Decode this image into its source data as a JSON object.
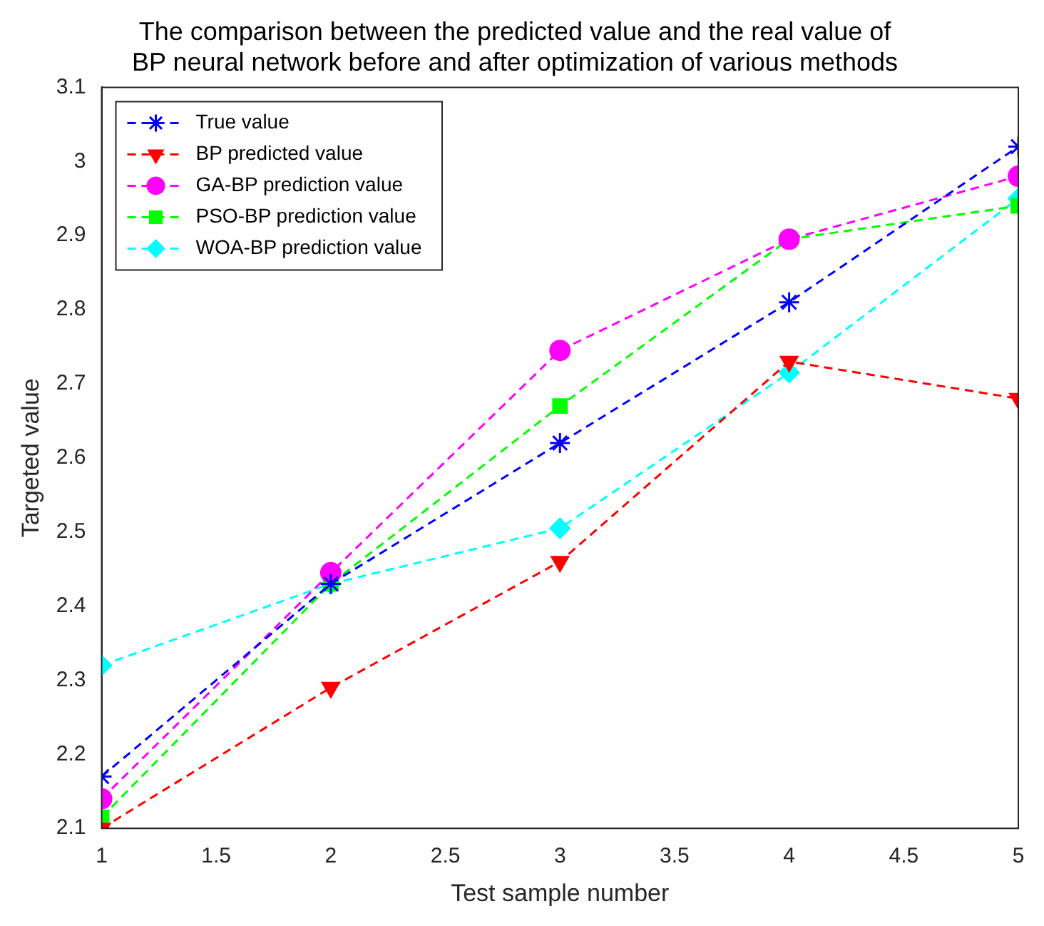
{
  "chart_data": {
    "type": "line",
    "title": "The comparison between the predicted value and the real value of BP neural network before and after optimization of various methods",
    "xlabel": "Test sample number",
    "ylabel": "Targeted value",
    "x": [
      1,
      2,
      3,
      4,
      5
    ],
    "series": [
      {
        "name": "True value",
        "color": "#0000ff",
        "marker": "cross",
        "values": [
          2.17,
          2.43,
          2.62,
          2.81,
          3.02
        ]
      },
      {
        "name": "BP predicted value",
        "color": "#ff0000",
        "marker": "triangle",
        "values": [
          2.1,
          2.29,
          2.46,
          2.73,
          2.68
        ]
      },
      {
        "name": "GA-BP prediction value",
        "color": "#ff00ff",
        "marker": "circle",
        "values": [
          2.14,
          2.445,
          2.745,
          2.895,
          2.98
        ]
      },
      {
        "name": "PSO-BP prediction value",
        "color": "#00ff00",
        "marker": "square",
        "values": [
          2.115,
          2.43,
          2.67,
          2.895,
          2.94
        ]
      },
      {
        "name": "WOA-BP prediction value",
        "color": "#00ffff",
        "marker": "diamond",
        "values": [
          2.32,
          2.43,
          2.505,
          2.715,
          2.95
        ]
      }
    ],
    "xlim": [
      1,
      5
    ],
    "xticks": [
      1,
      1.5,
      2,
      2.5,
      3,
      3.5,
      4,
      4.5,
      5
    ],
    "ylim": [
      2.1,
      3.1
    ],
    "yticks": [
      2.1,
      2.2,
      2.3,
      2.4,
      2.5,
      2.6,
      2.7,
      2.8,
      2.9,
      3,
      3.1
    ],
    "grid": false,
    "legend": "top left",
    "line_style": "dashed"
  }
}
